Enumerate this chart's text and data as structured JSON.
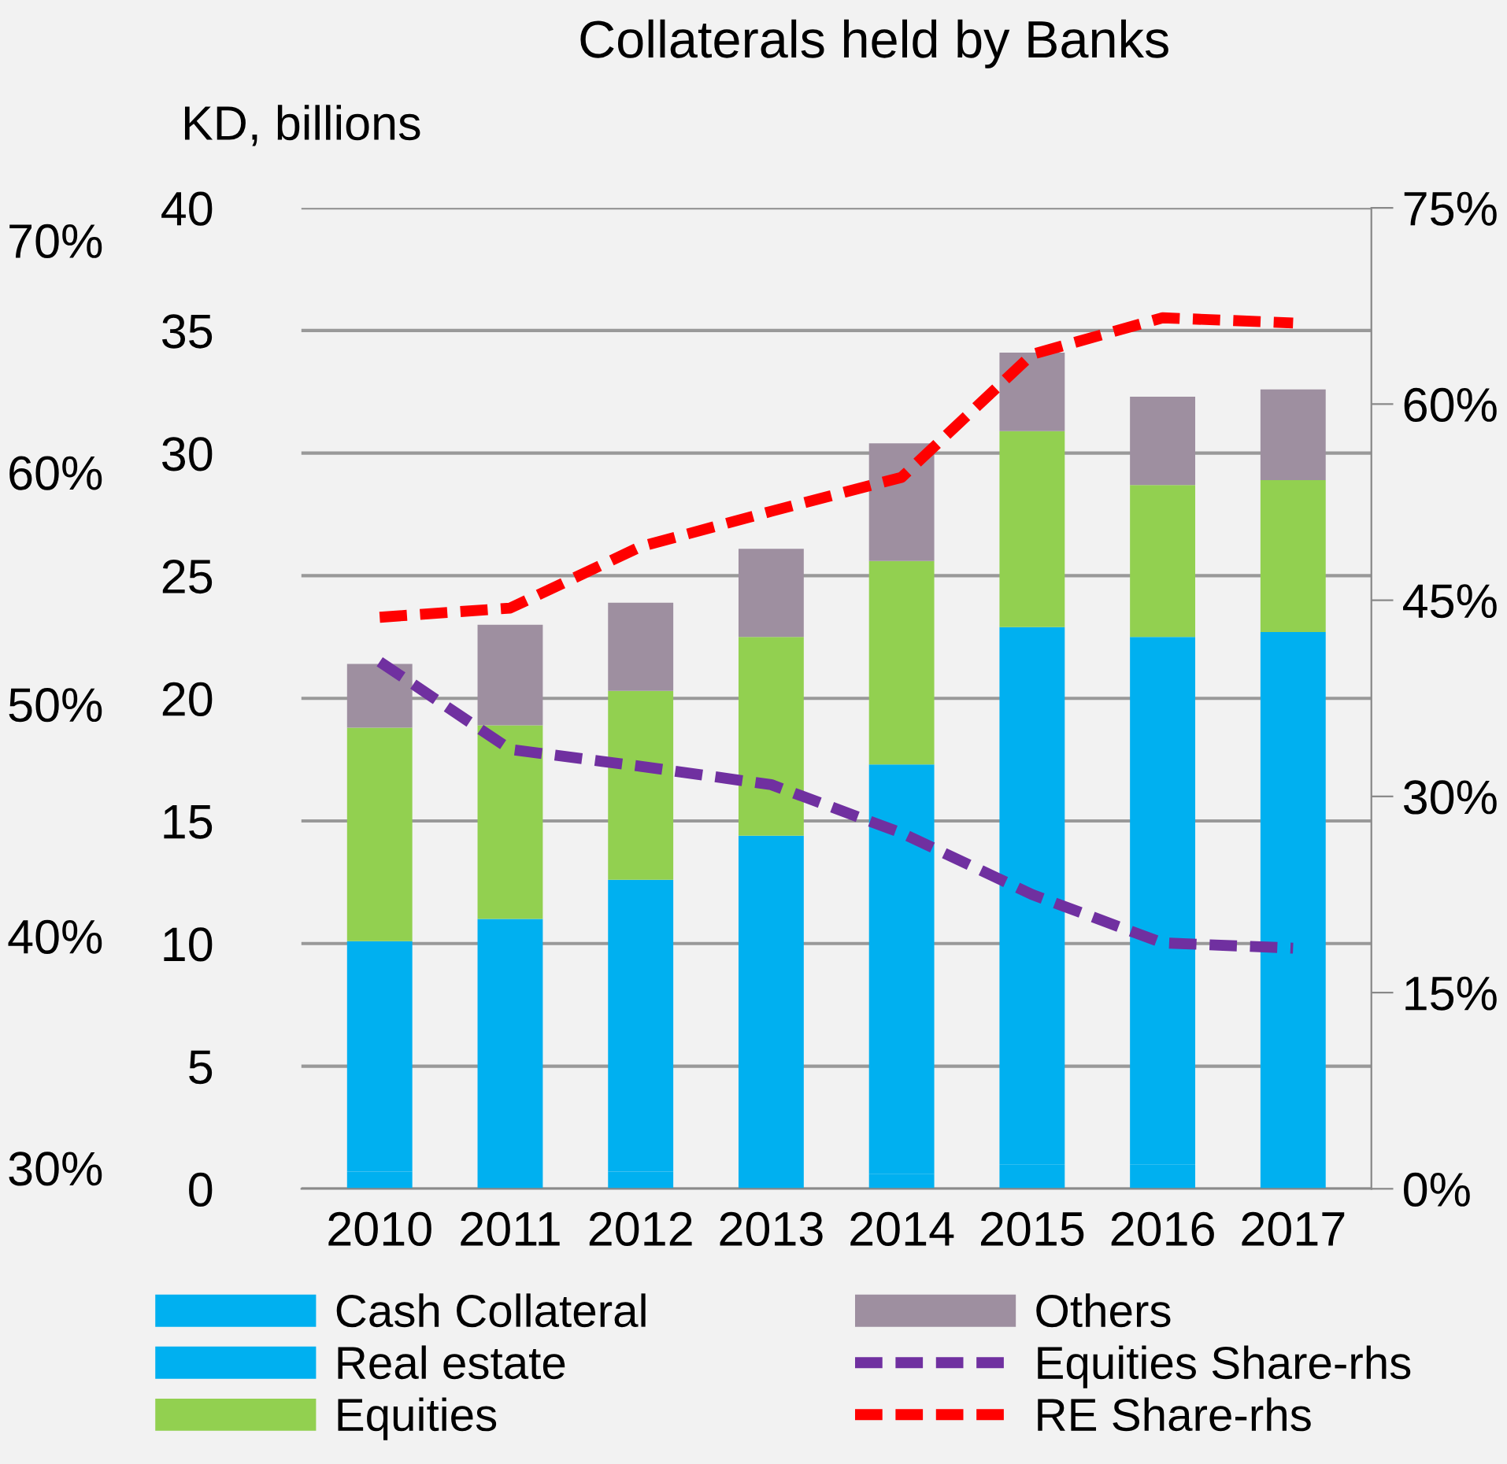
{
  "chart_data": {
    "type": "bar",
    "title": "Collaterals held by Banks",
    "ylabel": "KD, billions",
    "stacked": true,
    "categories": [
      "2010",
      "2011",
      "2012",
      "2013",
      "2014",
      "2015",
      "2016",
      "2017"
    ],
    "series": [
      {
        "name": "Cash Collateral",
        "color": "#00b0f0",
        "values": [
          0.7,
          0.3,
          0.7,
          0.2,
          0.6,
          1.0,
          1.0,
          1.1
        ]
      },
      {
        "name": "Real estate",
        "color": "#00b0f0",
        "values": [
          9.4,
          10.7,
          11.9,
          14.2,
          16.7,
          21.9,
          21.5,
          21.6
        ]
      },
      {
        "name": "Equities",
        "color": "#92d050",
        "values": [
          8.7,
          7.9,
          7.7,
          8.1,
          8.3,
          8.0,
          6.2,
          6.2
        ]
      },
      {
        "name": "Others",
        "color": "#9e8fa0",
        "values": [
          2.6,
          4.1,
          3.6,
          3.6,
          4.8,
          3.2,
          3.6,
          3.7
        ]
      },
      {
        "name": "Equities Share-rhs",
        "type": "line",
        "axis": "y2",
        "color": "#7030a0",
        "line_style": "dashed",
        "values": [
          40.3,
          33.6,
          32.3,
          30.9,
          27.2,
          22.5,
          18.8,
          18.4
        ]
      },
      {
        "name": "RE Share-rhs",
        "type": "line",
        "axis": "y2",
        "color": "#ff0000",
        "line_style": "dashed",
        "values": [
          43.7,
          44.4,
          49.1,
          51.8,
          54.4,
          63.8,
          66.6,
          66.2
        ]
      }
    ],
    "ylim": [
      0,
      40
    ],
    "yticks": [
      0,
      5,
      10,
      15,
      20,
      25,
      30,
      35,
      40
    ],
    "y2lim": [
      0,
      75
    ],
    "y2ticks": [
      {
        "value": 0,
        "label": "0%"
      },
      {
        "value": 15,
        "label": "15%"
      },
      {
        "value": 30,
        "label": "30%"
      },
      {
        "value": 45,
        "label": "45%"
      },
      {
        "value": 60,
        "label": "60%"
      },
      {
        "value": 75,
        "label": "75%"
      }
    ],
    "y3lim": [
      29.1,
      71.4
    ],
    "y3ticks": [
      {
        "value": 30,
        "label": "30%"
      },
      {
        "value": 40,
        "label": "40%"
      },
      {
        "value": 50,
        "label": "50%"
      },
      {
        "value": 60,
        "label": "60%"
      },
      {
        "value": 70,
        "label": "70%"
      }
    ],
    "grid": "y",
    "legend": "bottom",
    "marker": "none"
  }
}
